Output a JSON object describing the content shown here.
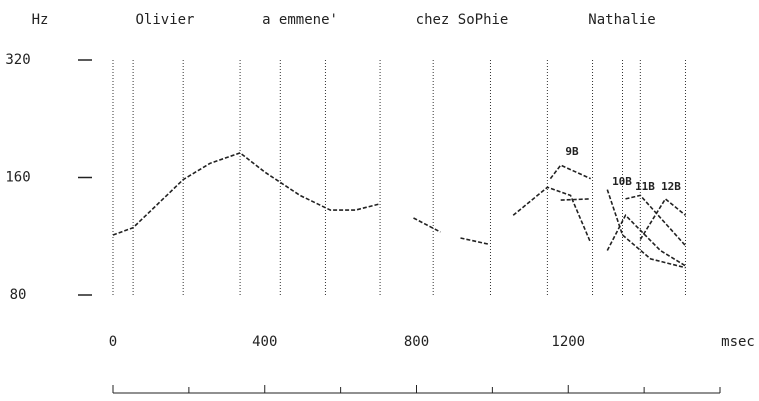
{
  "chart_data": {
    "type": "line",
    "y_label": "Hz",
    "x_label": "msec",
    "words": [
      "Olivier",
      "a emmene'",
      "chez SoPhie",
      "Nathalie"
    ],
    "annotations": [
      "9B",
      "10B",
      "11B",
      "12B"
    ],
    "log_y": true,
    "ylim": [
      80,
      320
    ],
    "yticks": [
      80,
      160,
      320
    ],
    "xlim": [
      0,
      1600
    ],
    "xticks": [
      0,
      400,
      800,
      1200
    ],
    "minor_xticks": [
      200,
      600,
      1000,
      1400,
      1600
    ],
    "boundaries": [
      0,
      53,
      185,
      335,
      441,
      560,
      704,
      844,
      995,
      1145,
      1264,
      1343,
      1390,
      1509
    ],
    "series": [
      {
        "color": "#222",
        "x": [
          0,
          53,
          185,
          256,
          335,
          401,
          493,
          573,
          639,
          704
        ],
        "values": [
          114,
          119,
          158,
          174,
          185,
          165,
          144,
          132,
          132,
          137
        ]
      },
      {
        "color": "#222",
        "x": [
          792,
          863
        ],
        "values": [
          126,
          116
        ]
      },
      {
        "color": "#222",
        "x": [
          916,
          989
        ],
        "values": [
          112,
          108
        ]
      },
      {
        "color": "#222",
        "x": [
          1055,
          1145,
          1206,
          1259
        ],
        "values": [
          128,
          151,
          144,
          109
        ]
      },
      {
        "color": "#222",
        "x": [
          1153,
          1180,
          1259
        ],
        "values": [
          159,
          172,
          159
        ]
      },
      {
        "color": "#222",
        "x": [
          1180,
          1259
        ],
        "values": [
          140,
          141
        ]
      },
      {
        "color": "#222",
        "x": [
          1303,
          1343,
          1417,
          1509
        ],
        "values": [
          149,
          114,
          99,
          94
        ]
      },
      {
        "color": "#222",
        "x": [
          1303,
          1351,
          1443,
          1509
        ],
        "values": [
          104,
          128,
          104,
          95
        ]
      },
      {
        "color": "#222",
        "x": [
          1351,
          1390,
          1509
        ],
        "values": [
          141,
          144,
          107
        ]
      },
      {
        "color": "#222",
        "x": [
          1390,
          1456,
          1509
        ],
        "values": [
          111,
          141,
          128
        ]
      }
    ]
  }
}
